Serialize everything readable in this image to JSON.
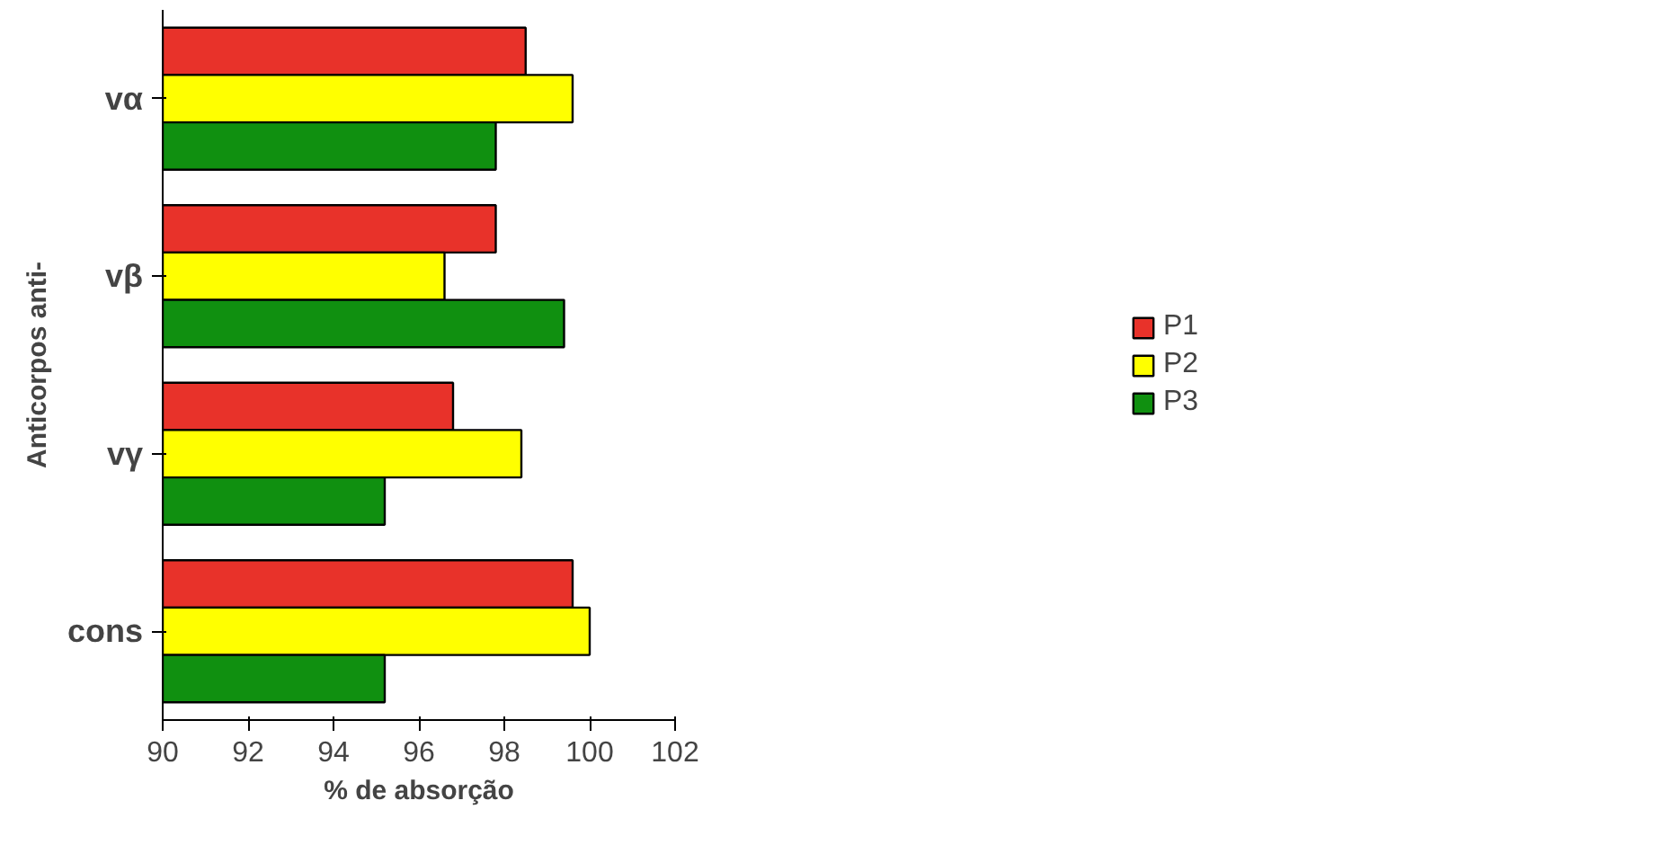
{
  "chart_data": {
    "type": "bar",
    "orientation": "horizontal",
    "xlabel": "% de absorção",
    "ylabel": "Anticorpos anti-",
    "categories": [
      "vα",
      "vβ",
      "vγ",
      "cons"
    ],
    "series": [
      {
        "name": "P1",
        "color": "#e8322a",
        "values": [
          98.5,
          97.8,
          96.8,
          99.6
        ]
      },
      {
        "name": "P2",
        "color": "#ffff00",
        "values": [
          99.6,
          96.6,
          98.4,
          100.0
        ]
      },
      {
        "name": "P3",
        "color": "#109010",
        "values": [
          97.8,
          99.4,
          95.2,
          95.2
        ]
      }
    ],
    "xlim": [
      90,
      102
    ],
    "xticks": [
      90,
      92,
      94,
      96,
      98,
      100,
      102
    ],
    "grid": false,
    "legend": "right"
  }
}
